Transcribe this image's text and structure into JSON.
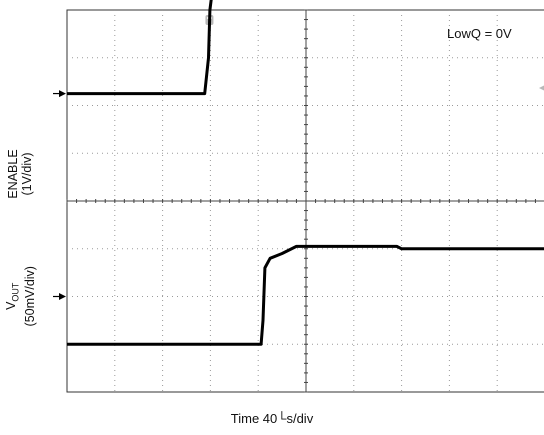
{
  "chart_data": {
    "type": "line",
    "annotation": "LowQ = 0V",
    "xlabel": "Time 40└s/div",
    "grid": true,
    "x_divisions": 10,
    "y_divisions": 8,
    "series": [
      {
        "name": "ENABLE",
        "label_line1": "ENABLE",
        "label_line2": "(1V/div)",
        "unit_per_div": "1V/div",
        "reference_div": 2.25,
        "color": "#000000",
        "points": [
          [
            0,
            2.25
          ],
          [
            2.88,
            2.25
          ],
          [
            2.96,
            3.0
          ],
          [
            2.99,
            4.0
          ],
          [
            3.02,
            4.25
          ],
          [
            10,
            4.25
          ]
        ]
      },
      {
        "name": "VOUT",
        "label_main": "V",
        "label_sub": "OUT",
        "label_line2": "(50mV/div)",
        "unit_per_div": "50mV/div",
        "reference_div": -2.0,
        "color": "#000000",
        "points": [
          [
            0,
            -3.0
          ],
          [
            4.06,
            -3.0
          ],
          [
            4.1,
            -2.5
          ],
          [
            4.14,
            -1.4
          ],
          [
            4.25,
            -1.2
          ],
          [
            4.5,
            -1.1
          ],
          [
            4.8,
            -0.95
          ],
          [
            6.9,
            -0.95
          ],
          [
            7.0,
            -1.0
          ],
          [
            10,
            -1.0
          ]
        ]
      }
    ]
  }
}
